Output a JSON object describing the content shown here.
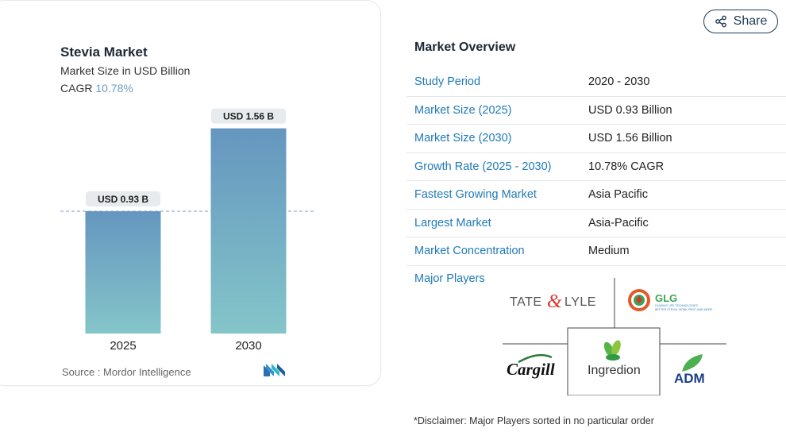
{
  "chart_data": {
    "type": "bar",
    "title": "Stevia Market",
    "subtitle": "Market Size in USD Billion",
    "cagr_label": "CAGR",
    "cagr_value": "10.78%",
    "categories": [
      "2025",
      "2030"
    ],
    "values": [
      0.93,
      1.56
    ],
    "value_labels": [
      "USD 0.93 B",
      "USD 1.56 B"
    ],
    "ylim": [
      0,
      1.6
    ],
    "reference_line_value": 0.93,
    "bar_color_top": "#6596bf",
    "bar_color_bottom": "#84c5c9"
  },
  "source": "Source :  Mordor Intelligence",
  "share_label": "Share",
  "overview": {
    "title": "Market Overview",
    "rows": [
      {
        "key": "Study Period",
        "value": "2020 - 2030"
      },
      {
        "key": "Market Size (2025)",
        "value": "USD 0.93 Billion"
      },
      {
        "key": "Market Size (2030)",
        "value": "USD 1.56 Billion"
      },
      {
        "key": "Growth Rate (2025 - 2030)",
        "value": "10.78% CAGR"
      },
      {
        "key": "Fastest Growing Market",
        "value": "Asia Pacific"
      },
      {
        "key": "Largest Market",
        "value": "Asia-Pacific"
      },
      {
        "key": "Market Concentration",
        "value": "Medium"
      }
    ]
  },
  "players": {
    "label": "Major Players",
    "tate_lyle": {
      "left": "TATE",
      "right": "LYLE"
    },
    "glg": {
      "name": "GLG",
      "tagline1": "LEADING LIFE TECHNOLOGIES",
      "tagline2": "BETTER STEVIA. MONK FRUIT AND MORE"
    },
    "cargill": "Cargill",
    "ingredion": "Ingredion",
    "adm": "ADM"
  },
  "disclaimer": "*Disclaimer: Major Players sorted in no particular order"
}
